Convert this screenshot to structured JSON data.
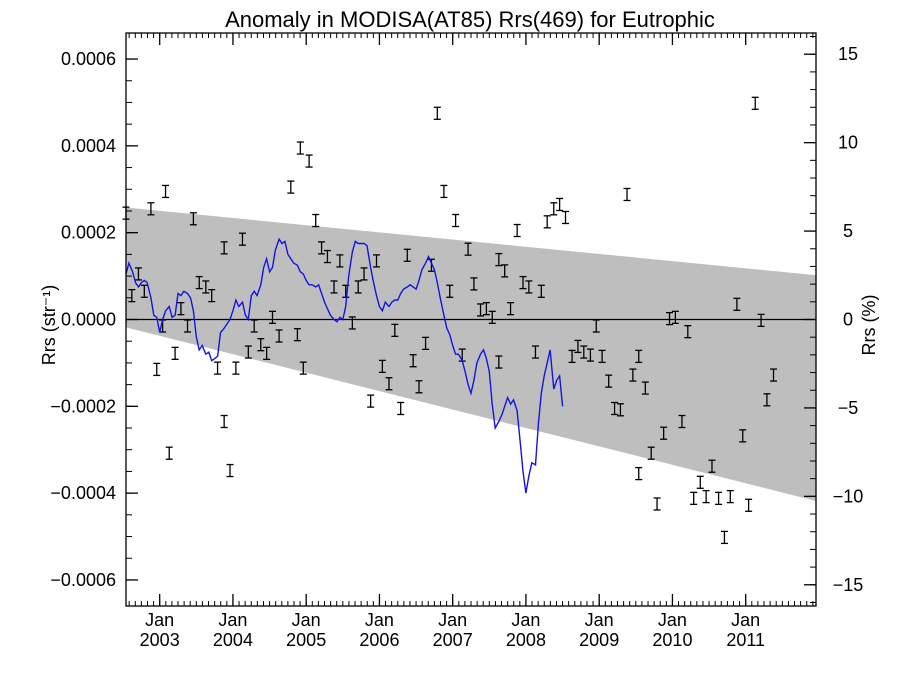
{
  "chart_data": {
    "type": "scatter",
    "title": "Anomaly in MODISA(AT85) Rrs(469) for Eutrophic",
    "ylabel_left": "Rrs (str⁻¹)",
    "ylabel_right": "Rrs (%)",
    "ylim_left": [
      -0.00066,
      0.00066
    ],
    "ylim_right": [
      -16.2,
      16.2
    ],
    "xlim": [
      2002.54,
      2011.96
    ],
    "left_ticks": [
      {
        "v": 0.0006,
        "label": "0.0006"
      },
      {
        "v": 0.0004,
        "label": "0.0004"
      },
      {
        "v": 0.0002,
        "label": "0.0002"
      },
      {
        "v": 0.0,
        "label": "0.0000"
      },
      {
        "v": -0.0002,
        "label": "−0.0002"
      },
      {
        "v": -0.0004,
        "label": "−0.0004"
      },
      {
        "v": -0.0006,
        "label": "−0.0006"
      }
    ],
    "right_ticks": [
      {
        "v": 15,
        "label": "15"
      },
      {
        "v": 10,
        "label": "10"
      },
      {
        "v": 5,
        "label": "5"
      },
      {
        "v": 0,
        "label": "0"
      },
      {
        "v": -5,
        "label": "−5"
      },
      {
        "v": -10,
        "label": "−10"
      },
      {
        "v": -15,
        "label": "−15"
      }
    ],
    "x_ticks": [
      {
        "v": 2003.0,
        "label": "Jan",
        "year": "2003"
      },
      {
        "v": 2004.0,
        "label": "Jan",
        "year": "2004"
      },
      {
        "v": 2005.0,
        "label": "Jan",
        "year": "2005"
      },
      {
        "v": 2006.0,
        "label": "Jan",
        "year": "2006"
      },
      {
        "v": 2007.0,
        "label": "Jan",
        "year": "2007"
      },
      {
        "v": 2008.0,
        "label": "Jan",
        "year": "2008"
      },
      {
        "v": 2009.0,
        "label": "Jan",
        "year": "2009"
      },
      {
        "v": 2010.0,
        "label": "Jan",
        "year": "2010"
      },
      {
        "v": 2011.0,
        "label": "Jan",
        "year": "2011"
      }
    ],
    "band": {
      "upper": [
        [
          2002.54,
          0.000258
        ],
        [
          2011.96,
          0.000102
        ]
      ],
      "lower": [
        [
          2002.54,
          -1.8e-05
        ],
        [
          2011.96,
          -0.000418
        ]
      ]
    },
    "zero_line": 0.0,
    "scatter_points": [
      [
        2002.54,
        0.000245
      ],
      [
        2002.62,
        5.5e-05
      ],
      [
        2002.71,
        0.000105
      ],
      [
        2002.79,
        6.5e-05
      ],
      [
        2002.88,
        0.000255
      ],
      [
        2002.96,
        -0.000115
      ],
      [
        2003.04,
        -1.5e-05
      ],
      [
        2003.08,
        0.000295
      ],
      [
        2003.13,
        -0.000308
      ],
      [
        2003.21,
        -7.8e-05
      ],
      [
        2003.29,
        2.5e-05
      ],
      [
        2003.38,
        -1.5e-05
      ],
      [
        2003.46,
        0.000232
      ],
      [
        2003.54,
        8.5e-05
      ],
      [
        2003.63,
        7.5e-05
      ],
      [
        2003.71,
        5.5e-05
      ],
      [
        2003.79,
        -0.000112
      ],
      [
        2003.88,
        0.000165
      ],
      [
        2003.88,
        -0.000235
      ],
      [
        2003.96,
        -0.000348
      ],
      [
        2004.04,
        -0.000112
      ],
      [
        2004.13,
        0.000185
      ],
      [
        2004.21,
        -7.5e-05
      ],
      [
        2004.29,
        -1.5e-05
      ],
      [
        2004.38,
        -5.8e-05
      ],
      [
        2004.46,
        -7.8e-05
      ],
      [
        2004.54,
        5e-06
      ],
      [
        2004.63,
        -3.8e-05
      ],
      [
        2004.79,
        0.000305
      ],
      [
        2004.88,
        -3.5e-05
      ],
      [
        2004.92,
        0.000395
      ],
      [
        2004.96,
        -0.000112
      ],
      [
        2005.04,
        0.000365
      ],
      [
        2005.13,
        0.000228
      ],
      [
        2005.21,
        0.000165
      ],
      [
        2005.29,
        0.000145
      ],
      [
        2005.38,
        7.5e-05
      ],
      [
        2005.46,
        0.000135
      ],
      [
        2005.54,
        6.5e-05
      ],
      [
        2005.63,
        -8e-06
      ],
      [
        2005.71,
        7.5e-05
      ],
      [
        2005.79,
        0.000105
      ],
      [
        2005.88,
        -0.000188
      ],
      [
        2005.96,
        0.000135
      ],
      [
        2006.04,
        -0.000108
      ],
      [
        2006.13,
        -0.000148
      ],
      [
        2006.21,
        -2.5e-05
      ],
      [
        2006.29,
        -0.000205
      ],
      [
        2006.38,
        0.000148
      ],
      [
        2006.46,
        -9.5e-05
      ],
      [
        2006.54,
        -0.000155
      ],
      [
        2006.63,
        -5.5e-05
      ],
      [
        2006.71,
        0.000125
      ],
      [
        2006.79,
        0.000475
      ],
      [
        2006.88,
        0.000295
      ],
      [
        2006.96,
        6.5e-05
      ],
      [
        2007.04,
        0.000228
      ],
      [
        2007.13,
        -8.2e-05
      ],
      [
        2007.21,
        0.000162
      ],
      [
        2007.29,
        8.2e-05
      ],
      [
        2007.38,
        2.2e-05
      ],
      [
        2007.46,
        2.5e-05
      ],
      [
        2007.54,
        5e-06
      ],
      [
        2007.63,
        -9.8e-05
      ],
      [
        2007.63,
        0.000138
      ],
      [
        2007.71,
        0.000112
      ],
      [
        2007.79,
        2.5e-05
      ],
      [
        2007.88,
        0.000205
      ],
      [
        2007.96,
        8.5e-05
      ],
      [
        2008.04,
        7.5e-05
      ],
      [
        2008.13,
        -7.5e-05
      ],
      [
        2008.21,
        6.5e-05
      ],
      [
        2008.29,
        0.000225
      ],
      [
        2008.38,
        0.000255
      ],
      [
        2008.46,
        0.000265
      ],
      [
        2008.54,
        0.000235
      ],
      [
        2008.63,
        -8.5e-05
      ],
      [
        2008.71,
        -6.2e-05
      ],
      [
        2008.79,
        -7.5e-05
      ],
      [
        2008.88,
        -8.2e-05
      ],
      [
        2008.96,
        -1.5e-05
      ],
      [
        2009.04,
        -8.5e-05
      ],
      [
        2009.13,
        -0.000142
      ],
      [
        2009.21,
        -0.000205
      ],
      [
        2009.29,
        -0.000208
      ],
      [
        2009.38,
        0.000288
      ],
      [
        2009.46,
        -0.000128
      ],
      [
        2009.54,
        -8.5e-05
      ],
      [
        2009.54,
        -0.000355
      ],
      [
        2009.63,
        -0.000158
      ],
      [
        2009.71,
        -0.000308
      ],
      [
        2009.79,
        -0.000425
      ],
      [
        2009.88,
        -0.000262
      ],
      [
        2009.96,
        2e-06
      ],
      [
        2010.04,
        5e-06
      ],
      [
        2010.13,
        -0.000235
      ],
      [
        2010.21,
        -2.8e-05
      ],
      [
        2010.29,
        -0.000412
      ],
      [
        2010.38,
        -0.000375
      ],
      [
        2010.46,
        -0.000408
      ],
      [
        2010.54,
        -0.000338
      ],
      [
        2010.63,
        -0.000412
      ],
      [
        2010.71,
        -0.000502
      ],
      [
        2010.79,
        -0.000408
      ],
      [
        2010.88,
        3.5e-05
      ],
      [
        2010.96,
        -0.000268
      ],
      [
        2011.04,
        -0.000428
      ],
      [
        2011.13,
        0.000498
      ],
      [
        2011.21,
        -2e-06
      ],
      [
        2011.29,
        -0.000185
      ],
      [
        2011.38,
        -0.000128
      ]
    ],
    "smooth_line": [
      [
        2002.54,
        0.000105
      ],
      [
        2002.58,
        0.00013
      ],
      [
        2002.63,
        0.00011
      ],
      [
        2002.67,
        8.5e-05
      ],
      [
        2002.71,
        7.5e-05
      ],
      [
        2002.75,
        8.5e-05
      ],
      [
        2002.79,
        9e-05
      ],
      [
        2002.83,
        8.5e-05
      ],
      [
        2002.88,
        5e-05
      ],
      [
        2002.92,
        1e-05
      ],
      [
        2002.96,
        5e-06
      ],
      [
        2003.0,
        -3e-05
      ],
      [
        2003.04,
        0.0
      ],
      [
        2003.08,
        2e-05
      ],
      [
        2003.13,
        3e-05
      ],
      [
        2003.17,
        5e-06
      ],
      [
        2003.21,
        1e-05
      ],
      [
        2003.25,
        6e-05
      ],
      [
        2003.29,
        5.5e-05
      ],
      [
        2003.33,
        6.5e-05
      ],
      [
        2003.38,
        6e-05
      ],
      [
        2003.42,
        5e-05
      ],
      [
        2003.46,
        2e-05
      ],
      [
        2003.5,
        -4e-05
      ],
      [
        2003.54,
        -7e-05
      ],
      [
        2003.58,
        -6e-05
      ],
      [
        2003.63,
        -8e-05
      ],
      [
        2003.67,
        -7.5e-05
      ],
      [
        2003.71,
        -9.5e-05
      ],
      [
        2003.75,
        -9e-05
      ],
      [
        2003.79,
        -8.5e-05
      ],
      [
        2003.83,
        -3e-05
      ],
      [
        2003.88,
        -2e-05
      ],
      [
        2003.92,
        -1e-05
      ],
      [
        2003.96,
        0.0
      ],
      [
        2004.0,
        2e-05
      ],
      [
        2004.04,
        4.5e-05
      ],
      [
        2004.08,
        3e-05
      ],
      [
        2004.13,
        4e-05
      ],
      [
        2004.17,
        1e-05
      ],
      [
        2004.21,
        0.0
      ],
      [
        2004.25,
        5.5e-05
      ],
      [
        2004.29,
        6.5e-05
      ],
      [
        2004.33,
        5.5e-05
      ],
      [
        2004.38,
        8e-05
      ],
      [
        2004.42,
        0.00012
      ],
      [
        2004.46,
        0.00014
      ],
      [
        2004.5,
        0.00011
      ],
      [
        2004.54,
        0.00012
      ],
      [
        2004.58,
        0.00016
      ],
      [
        2004.63,
        0.000185
      ],
      [
        2004.67,
        0.000175
      ],
      [
        2004.71,
        0.00018
      ],
      [
        2004.75,
        0.00015
      ],
      [
        2004.79,
        0.00014
      ],
      [
        2004.83,
        0.00013
      ],
      [
        2004.88,
        0.000125
      ],
      [
        2004.92,
        0.00011
      ],
      [
        2004.96,
        0.000105
      ],
      [
        2005.0,
        9e-05
      ],
      [
        2005.04,
        8e-05
      ],
      [
        2005.08,
        8e-05
      ],
      [
        2005.13,
        7.5e-05
      ],
      [
        2005.17,
        8e-05
      ],
      [
        2005.21,
        6e-05
      ],
      [
        2005.25,
        4e-05
      ],
      [
        2005.29,
        2.5e-05
      ],
      [
        2005.33,
        1e-05
      ],
      [
        2005.38,
        0.0
      ],
      [
        2005.42,
        -5e-06
      ],
      [
        2005.46,
        5e-06
      ],
      [
        2005.5,
        0.0
      ],
      [
        2005.54,
        3e-05
      ],
      [
        2005.58,
        0.0001
      ],
      [
        2005.63,
        0.000155
      ],
      [
        2005.67,
        0.00018
      ],
      [
        2005.71,
        0.000175
      ],
      [
        2005.75,
        0.000175
      ],
      [
        2005.79,
        0.000175
      ],
      [
        2005.83,
        0.00017
      ],
      [
        2005.88,
        0.00012
      ],
      [
        2005.92,
        8.5e-05
      ],
      [
        2005.96,
        5.5e-05
      ],
      [
        2006.0,
        3e-05
      ],
      [
        2006.04,
        2e-05
      ],
      [
        2006.08,
        4e-05
      ],
      [
        2006.13,
        3e-05
      ],
      [
        2006.17,
        4e-05
      ],
      [
        2006.21,
        4.5e-05
      ],
      [
        2006.25,
        4.5e-05
      ],
      [
        2006.29,
        6e-05
      ],
      [
        2006.33,
        7e-05
      ],
      [
        2006.38,
        7.5e-05
      ],
      [
        2006.42,
        8e-05
      ],
      [
        2006.46,
        7.5e-05
      ],
      [
        2006.5,
        7e-05
      ],
      [
        2006.54,
        9e-05
      ],
      [
        2006.58,
        0.000115
      ],
      [
        2006.63,
        0.00013
      ],
      [
        2006.67,
        0.000145
      ],
      [
        2006.71,
        0.00013
      ],
      [
        2006.75,
        0.000115
      ],
      [
        2006.79,
        8.5e-05
      ],
      [
        2006.83,
        5e-05
      ],
      [
        2006.88,
        1e-05
      ],
      [
        2006.92,
        -2e-05
      ],
      [
        2006.96,
        -3.5e-05
      ],
      [
        2007.0,
        -6e-05
      ],
      [
        2007.04,
        -8e-05
      ],
      [
        2007.08,
        -8e-05
      ],
      [
        2007.13,
        -9.5e-05
      ],
      [
        2007.17,
        -0.00012
      ],
      [
        2007.21,
        -0.00015
      ],
      [
        2007.25,
        -0.00017
      ],
      [
        2007.29,
        -0.00014
      ],
      [
        2007.33,
        -0.0001
      ],
      [
        2007.38,
        -8e-05
      ],
      [
        2007.42,
        -7e-05
      ],
      [
        2007.46,
        -9e-05
      ],
      [
        2007.5,
        -0.00012
      ],
      [
        2007.54,
        -0.000195
      ],
      [
        2007.58,
        -0.00025
      ],
      [
        2007.63,
        -0.000235
      ],
      [
        2007.67,
        -0.00022
      ],
      [
        2007.71,
        -0.0002
      ],
      [
        2007.75,
        -0.00018
      ],
      [
        2007.79,
        -0.000195
      ],
      [
        2007.83,
        -0.000185
      ],
      [
        2007.88,
        -0.00021
      ],
      [
        2007.92,
        -0.00028
      ],
      [
        2007.96,
        -0.00035
      ],
      [
        2008.0,
        -0.0004
      ],
      [
        2008.04,
        -0.00036
      ],
      [
        2008.08,
        -0.00033
      ],
      [
        2008.13,
        -0.000335
      ],
      [
        2008.17,
        -0.00024
      ],
      [
        2008.21,
        -0.00017
      ],
      [
        2008.25,
        -0.00013
      ],
      [
        2008.29,
        -0.0001
      ],
      [
        2008.33,
        -7e-05
      ],
      [
        2008.38,
        -0.00016
      ],
      [
        2008.42,
        -0.00014
      ],
      [
        2008.46,
        -0.00013
      ],
      [
        2008.5,
        -0.0002
      ]
    ]
  }
}
